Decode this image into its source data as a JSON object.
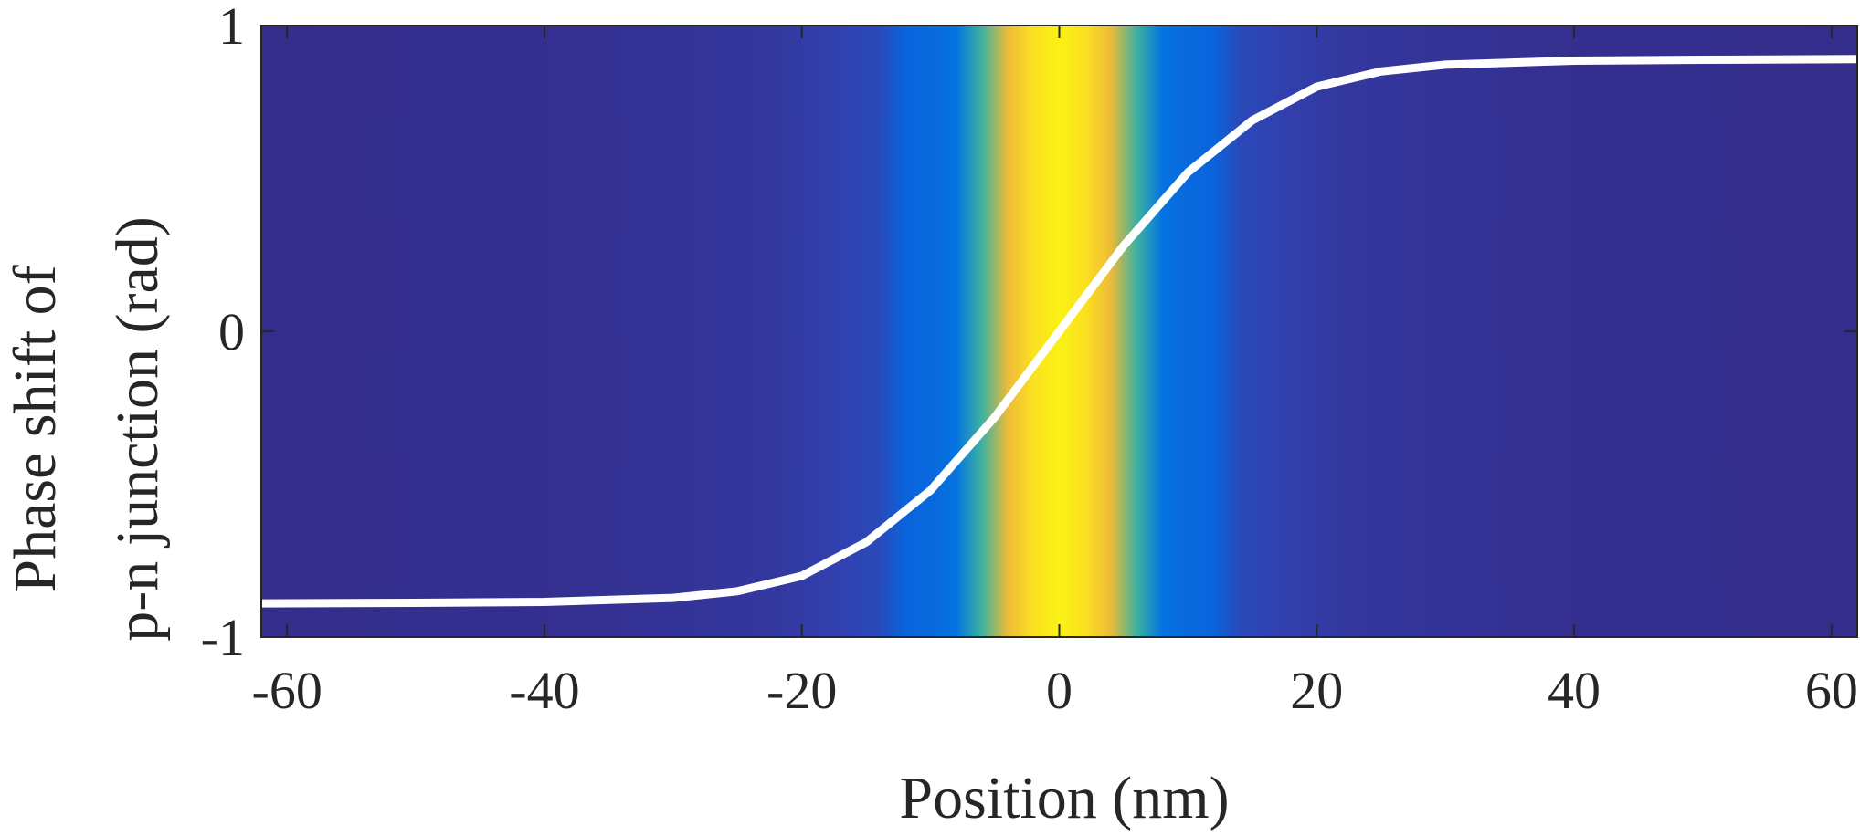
{
  "chart_data": {
    "type": "heatmap",
    "xlabel": "Position (nm)",
    "ylabel_lines": [
      "Phase shift of",
      "p-n junction (rad)"
    ],
    "xlim": [
      -62,
      62
    ],
    "ylim": [
      -1,
      1
    ],
    "x_ticks": [
      -60,
      -40,
      -20,
      0,
      20,
      40,
      60
    ],
    "x_tick_labels": [
      "-60",
      "-40",
      "-20",
      "0",
      "20",
      "40",
      "60"
    ],
    "y_ticks": [
      -1,
      0,
      1
    ],
    "y_tick_labels": [
      "-1",
      "0",
      "1"
    ],
    "background": {
      "description_colormap": "parula",
      "x": [
        -62,
        -40,
        -30,
        -22,
        -18,
        -14,
        -12,
        -10,
        -8,
        -6,
        -4,
        -2,
        0,
        2,
        4,
        6,
        8,
        10,
        12,
        14,
        18,
        22,
        30,
        40,
        62
      ],
      "intensity": [
        0.02,
        0.03,
        0.06,
        0.09,
        0.14,
        0.18,
        0.28,
        0.3,
        0.35,
        0.55,
        0.78,
        0.92,
        0.97,
        0.92,
        0.78,
        0.55,
        0.35,
        0.3,
        0.28,
        0.18,
        0.14,
        0.09,
        0.06,
        0.03,
        0.02
      ]
    },
    "series": [
      {
        "color": "#ffffff",
        "x": [
          -62,
          -50,
          -40,
          -30,
          -25,
          -20,
          -15,
          -10,
          -5,
          0,
          5,
          10,
          15,
          20,
          25,
          30,
          40,
          50,
          62
        ],
        "y": [
          -0.89,
          -0.888,
          -0.885,
          -0.872,
          -0.85,
          -0.8,
          -0.69,
          -0.52,
          -0.28,
          0.0,
          0.28,
          0.52,
          0.69,
          0.8,
          0.85,
          0.872,
          0.885,
          0.888,
          0.89
        ]
      }
    ],
    "grid": false,
    "legend": "none"
  }
}
